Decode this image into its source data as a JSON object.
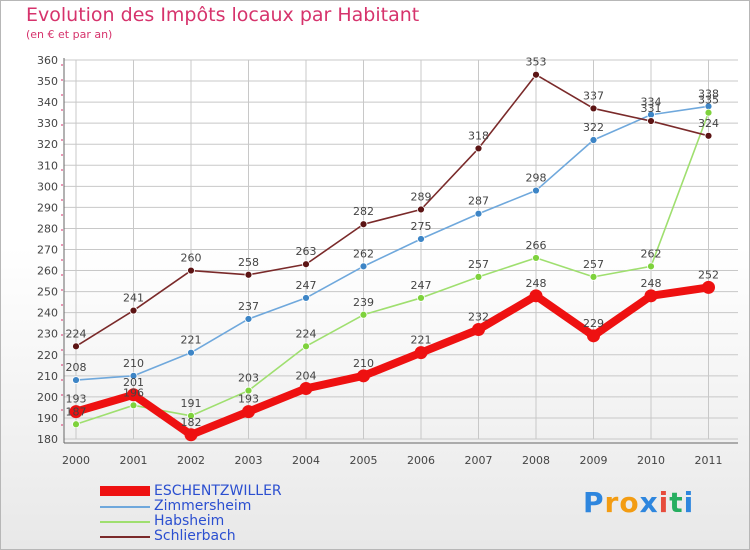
{
  "title": "Evolution des Impôts locaux par Habitant",
  "subtitle": "(en € et par an)",
  "logo": {
    "text": "Proxiti",
    "letters": [
      "P",
      "r",
      "o",
      "x",
      "i",
      "t",
      "i"
    ],
    "colors": [
      "#2e86de",
      "#f39c12",
      "#f39c12",
      "#2e86de",
      "#e74c3c",
      "#27ae60",
      "#2e86de"
    ]
  },
  "chart_data": {
    "type": "line",
    "title": "Evolution des Impôts locaux par Habitant",
    "subtitle": "(en € et par an)",
    "xlabel": "",
    "ylabel": "",
    "ylim": [
      180,
      360
    ],
    "ytick_step": 10,
    "grid": true,
    "legend_position": "bottom-left",
    "x": [
      "2000",
      "2001",
      "2002",
      "2003",
      "2004",
      "2005",
      "2006",
      "2007",
      "2008",
      "2009",
      "2010",
      "2011"
    ],
    "series": [
      {
        "name": "ESCHENTZWILLER",
        "color": "#ee1111",
        "values": [
          193,
          201,
          182,
          193,
          204,
          210,
          221,
          232,
          248,
          229,
          248,
          252
        ],
        "labels": [
          "193",
          "201",
          "182",
          "193",
          "204",
          "210",
          "221",
          "232",
          "248",
          "229",
          "248",
          "252"
        ],
        "emphasis": true
      },
      {
        "name": "Zimmersheim",
        "color": "#6fa8dc",
        "marker_color": "#3d85c6",
        "values": [
          208,
          210,
          221,
          237,
          247,
          262,
          275,
          287,
          298,
          322,
          334,
          338
        ],
        "labels": [
          "208",
          "210",
          "221",
          "237",
          "247",
          "262",
          "275",
          "287",
          "298",
          "322",
          "334",
          "338"
        ]
      },
      {
        "name": "Habsheim",
        "color": "#9fdf6f",
        "marker_color": "#7ed23c",
        "values": [
          187,
          196,
          191,
          203,
          224,
          239,
          247,
          257,
          266,
          257,
          262,
          335
        ],
        "labels": [
          "187",
          "196",
          "191",
          "203",
          "224",
          "239",
          "247",
          "257",
          "266",
          "257",
          "262",
          "335"
        ]
      },
      {
        "name": "Schlierbach",
        "color": "#7a2a2a",
        "marker_color": "#5c1414",
        "values": [
          224,
          241,
          260,
          258,
          263,
          282,
          289,
          318,
          353,
          337,
          331,
          324
        ],
        "labels": [
          "224",
          "241",
          "260",
          "258",
          "263",
          "282",
          "289",
          "318",
          "353",
          "337",
          "331",
          "324"
        ]
      }
    ]
  }
}
